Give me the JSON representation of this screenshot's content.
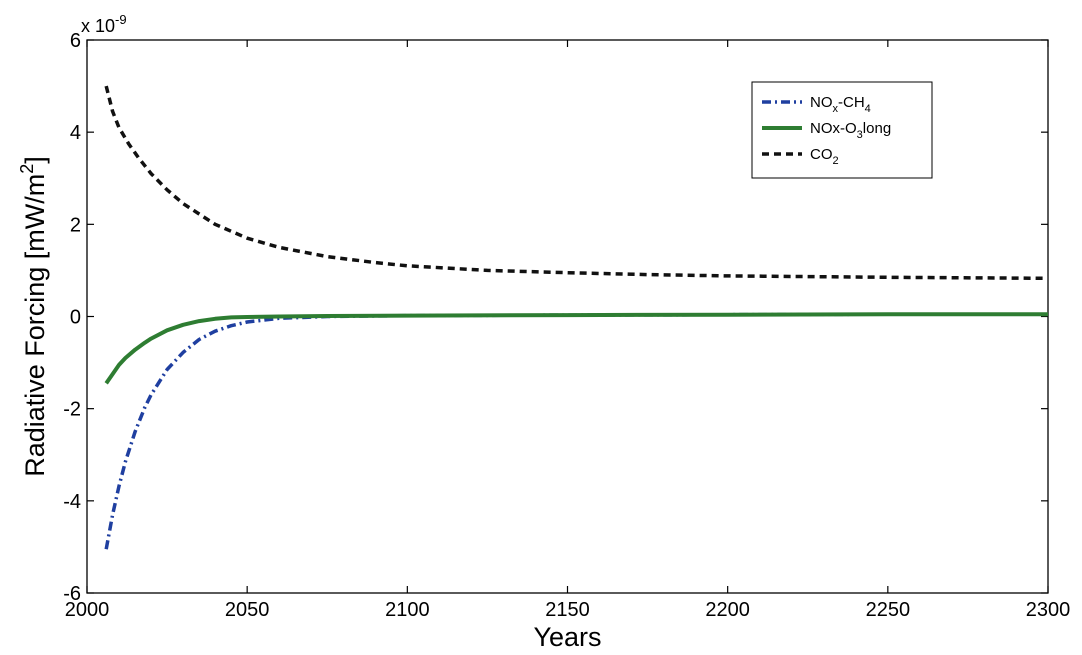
{
  "chart_data": {
    "type": "line",
    "title": "",
    "xlabel": "Years",
    "ylabel": "Radiative Forcing [mW/m",
    "ylabel_superscript": "2",
    "ylabel_suffix": "]",
    "y_exponent_base": "x 10",
    "y_exponent_power": "-9",
    "xlim": [
      2000,
      2300
    ],
    "ylim": [
      -6,
      6
    ],
    "x_ticks": [
      "2000",
      "2050",
      "2100",
      "2150",
      "2200",
      "2250",
      "2300"
    ],
    "y_ticks": [
      "-6",
      "-4",
      "-2",
      "0",
      "2",
      "4",
      "6"
    ],
    "grid": false,
    "legend_position": "top-right",
    "series": [
      {
        "name": "NOx-CH4",
        "legend_parts": [
          [
            "NO",
            ""
          ],
          [
            "x",
            "sub"
          ],
          [
            "-CH",
            ""
          ],
          [
            "4",
            "sub"
          ]
        ],
        "color": "#1f3fa0",
        "dash": "dashdot",
        "x": [
          2006,
          2008,
          2010,
          2012,
          2015,
          2018,
          2020,
          2025,
          2030,
          2035,
          2040,
          2045,
          2050,
          2060,
          2075,
          2100,
          2150,
          2200,
          2250,
          2300
        ],
        "y": [
          -5.05,
          -4.3,
          -3.68,
          -3.15,
          -2.5,
          -1.98,
          -1.7,
          -1.15,
          -0.78,
          -0.5,
          -0.32,
          -0.2,
          -0.12,
          -0.04,
          0.0,
          0.02,
          0.03,
          0.04,
          0.05,
          0.05
        ]
      },
      {
        "name": "NOx-O3long",
        "legend_parts": [
          [
            "NOx-O",
            ""
          ],
          [
            "3",
            "sub"
          ],
          [
            "long",
            ""
          ]
        ],
        "color": "#2e7d32",
        "dash": "solid",
        "x": [
          2006,
          2008,
          2010,
          2012,
          2015,
          2018,
          2020,
          2025,
          2030,
          2035,
          2040,
          2045,
          2050,
          2060,
          2075,
          2100,
          2150,
          2200,
          2250,
          2300
        ],
        "y": [
          -1.45,
          -1.25,
          -1.05,
          -0.9,
          -0.72,
          -0.57,
          -0.48,
          -0.3,
          -0.18,
          -0.1,
          -0.05,
          -0.02,
          -0.01,
          0.0,
          0.01,
          0.02,
          0.03,
          0.04,
          0.05,
          0.05
        ]
      },
      {
        "name": "CO2",
        "legend_parts": [
          [
            "CO",
            ""
          ],
          [
            "2",
            "sub"
          ]
        ],
        "color": "#111111",
        "dash": "dashed",
        "x": [
          2006,
          2008,
          2010,
          2013,
          2016,
          2020,
          2025,
          2030,
          2040,
          2050,
          2060,
          2075,
          2090,
          2100,
          2125,
          2150,
          2175,
          2200,
          2250,
          2300
        ],
        "y": [
          5.0,
          4.45,
          4.1,
          3.75,
          3.45,
          3.1,
          2.75,
          2.45,
          2.0,
          1.7,
          1.5,
          1.3,
          1.17,
          1.1,
          1.0,
          0.95,
          0.91,
          0.88,
          0.85,
          0.83
        ]
      }
    ]
  }
}
